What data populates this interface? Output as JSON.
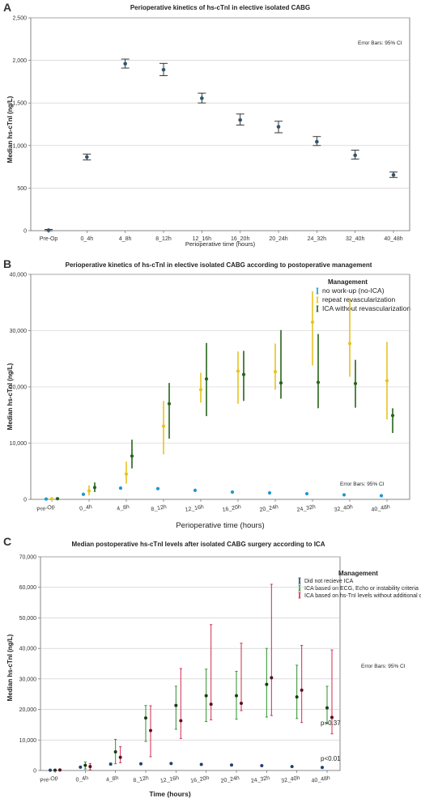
{
  "panels": [
    {
      "letter": "A",
      "title": "Perioperative kinetics of hs-cTnI in elective isolated CABG",
      "note": "Error Bars: 95% CI",
      "xlabel": "Perioperative time (hours)",
      "ylabel": "Median hs-cTnI (ng/L)",
      "p_labels": []
    },
    {
      "letter": "B",
      "title": "Perioperative kinetics of hs-cTnI in elective isolated CABG according to postoperative management",
      "note": "Error Bars: 95% CI",
      "xlabel": "Perioperative time (hours)",
      "ylabel": "Median hs-cTnI (ng/L)",
      "legend_title": "Management",
      "p_labels": []
    },
    {
      "letter": "C",
      "title": "Median postoperative hs-cTnI levels after isolated CABG surgery according to ICA",
      "note": "Error Bars: 95% CI",
      "xlabel": "Time (hours)",
      "ylabel": "Median hs-cTnI (ng/L)",
      "legend_title": "Management",
      "p_labels": [
        "p=0.37",
        "p<0.01"
      ]
    }
  ],
  "chart_data": [
    {
      "type": "scatter",
      "title": "Perioperative kinetics of hs-cTnI in elective isolated CABG",
      "xlabel": "Perioperative time (hours)",
      "ylabel": "Median hs-cTnI (ng/L)",
      "categories": [
        "Pre-Op",
        "0_4h",
        "4_8h",
        "8_12h",
        "12_16h",
        "16_20h",
        "20_24h",
        "24_32h",
        "32_40h",
        "40_48h"
      ],
      "ylim": [
        0,
        2500
      ],
      "yticks": [
        0,
        500,
        1000,
        1500,
        2000,
        2500
      ],
      "ytick_labels": [
        "0",
        "500",
        "1,000",
        "1,500",
        "2,000",
        "2,500"
      ],
      "grid": "horizontal",
      "error_bars": "95% CI",
      "series": [
        {
          "color": "#2f5570",
          "values": [
            5,
            865,
            1960,
            1890,
            1555,
            1300,
            1220,
            1045,
            885,
            655
          ],
          "lower": [
            0,
            830,
            1910,
            1820,
            1500,
            1240,
            1150,
            1000,
            840,
            625
          ],
          "upper": [
            15,
            900,
            2015,
            1965,
            1615,
            1370,
            1285,
            1105,
            945,
            690
          ]
        }
      ]
    },
    {
      "type": "scatter",
      "title": "Perioperative kinetics of hs-cTnI in elective isolated CABG according to postoperative management",
      "xlabel": "Perioperative time (hours)",
      "ylabel": "Median hs-cTnI (ng/L)",
      "categories": [
        "Pre-Op",
        "0_4h",
        "4_8h",
        "8_12h",
        "12_16h",
        "16_20h",
        "20_24h",
        "24_32h",
        "32_40h",
        "40_48h"
      ],
      "ylim": [
        0,
        40000
      ],
      "yticks": [
        0,
        10000,
        20000,
        30000,
        40000
      ],
      "ytick_labels": [
        "0",
        "10,000",
        "20,000",
        "30,000",
        "40,000"
      ],
      "grid": "horizontal",
      "error_bars": "95% CI",
      "legend_position": "top-right",
      "series": [
        {
          "name": "no work-up (no-ICA)",
          "color": "#2196d3",
          "values": [
            60,
            900,
            2000,
            1900,
            1600,
            1300,
            1150,
            1000,
            800,
            650
          ],
          "lower": [
            50,
            850,
            1950,
            1850,
            1550,
            1250,
            1100,
            950,
            750,
            600
          ],
          "upper": [
            70,
            950,
            2050,
            1950,
            1650,
            1350,
            1200,
            1050,
            850,
            700
          ]
        },
        {
          "name": "repeat revascularization",
          "color": "#e6c320",
          "values": [
            100,
            1500,
            4500,
            13000,
            19500,
            22800,
            22700,
            31500,
            27700,
            21100
          ],
          "lower": [
            0,
            700,
            2800,
            8000,
            17200,
            17000,
            19500,
            23800,
            21800,
            14200
          ],
          "upper": [
            300,
            2500,
            6700,
            17500,
            22500,
            26300,
            27700,
            37000,
            35800,
            28000
          ]
        },
        {
          "name": "ICA without revascularization",
          "color": "#27641a",
          "values": [
            120,
            2100,
            7700,
            17000,
            21400,
            22200,
            20700,
            20800,
            20600,
            14900
          ],
          "lower": [
            0,
            1300,
            5500,
            10800,
            14800,
            17500,
            17900,
            16200,
            16300,
            11800
          ],
          "upper": [
            300,
            3000,
            10600,
            20700,
            27800,
            26400,
            30100,
            29400,
            24800,
            16200
          ]
        }
      ]
    },
    {
      "type": "scatter",
      "title": "Median postoperative hs-cTnI levels after isolated CABG surgery according to ICA",
      "xlabel": "Time (hours)",
      "ylabel": "Median hs-cTnI (ng/L)",
      "categories": [
        "Pre-Op",
        "0_4h",
        "4_8h",
        "8_12h",
        "12_16h",
        "16_20h",
        "20_24h",
        "24_32h",
        "32_40h",
        "40_48h"
      ],
      "ylim": [
        0,
        70000
      ],
      "yticks": [
        0,
        10000,
        20000,
        30000,
        40000,
        50000,
        60000,
        70000
      ],
      "ytick_labels": [
        "0",
        "10,000",
        "20,000",
        "30,000",
        "40,000",
        "50,000",
        "60,000",
        "70,000"
      ],
      "grid": "horizontal",
      "error_bars": "95% CI",
      "legend_position": "top-right",
      "series": [
        {
          "name": "Did not recieve ICA",
          "color": "#24406f",
          "values": [
            100,
            1100,
            2100,
            2200,
            2300,
            2000,
            1800,
            1600,
            1300,
            1000
          ],
          "lower": [
            50,
            1000,
            2000,
            2100,
            2200,
            1900,
            1700,
            1500,
            1200,
            900
          ],
          "upper": [
            150,
            1200,
            2200,
            2300,
            2400,
            2100,
            1900,
            1700,
            1400,
            1100
          ]
        },
        {
          "name": "ICA based on ECG, Echo or instability criteria",
          "color": "#2e8f2e",
          "values": [
            100,
            1700,
            6100,
            17200,
            21300,
            24500,
            24500,
            28200,
            24100,
            20500
          ],
          "lower": [
            0,
            500,
            2200,
            9500,
            13500,
            16000,
            16800,
            17500,
            17000,
            15500
          ],
          "upper": [
            300,
            2800,
            10200,
            21300,
            27600,
            33200,
            32500,
            40000,
            34500,
            27600
          ]
        },
        {
          "name": "ICA based on hs-TnI levels without additional criteria",
          "color": "#d12a4e",
          "values": [
            150,
            1300,
            4300,
            13100,
            16300,
            21700,
            22000,
            30400,
            26300,
            17400
          ],
          "lower": [
            0,
            200,
            2500,
            4500,
            10500,
            16600,
            19600,
            18000,
            15700,
            12000
          ],
          "upper": [
            400,
            2300,
            7800,
            21200,
            33400,
            47800,
            41700,
            61000,
            41000,
            39500
          ]
        }
      ]
    }
  ]
}
